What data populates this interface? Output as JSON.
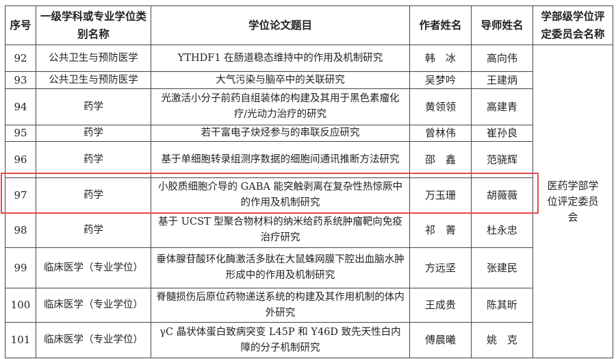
{
  "header": {
    "no": "序号",
    "category": "一级学科或专业学位类别名称",
    "title": "学位论文题目",
    "author": "作者姓名",
    "advisor": "导师姓名",
    "committee": "学部级学位评定委员会名称"
  },
  "committee": "医药学部学位评定委员会",
  "highlight_color": "#e8474c",
  "rows": [
    {
      "no": "92",
      "category": "公共卫生与预防医学",
      "title": "YTHDF1 在肠道稳态维持中的作用及机制研究",
      "author": "韩　冰",
      "advisor": "高向伟"
    },
    {
      "no": "93",
      "category": "公共卫生与预防医学",
      "title": "大气污染与脑卒中的关联研究",
      "author": "吴梦吟",
      "advisor": "王建炳"
    },
    {
      "no": "94",
      "category": "药学",
      "title": "光激活小分子前药自组装体的构建及其用于黑色素瘤化疗/光动力治疗的研究",
      "author": "黄领领",
      "advisor": "高建青"
    },
    {
      "no": "95",
      "category": "药学",
      "title": "若干富电子炔烃参与的串联反应研究",
      "author": "曾林伟",
      "advisor": "崔孙良"
    },
    {
      "no": "96",
      "category": "药学",
      "title": "基于单细胞转录组测序数据的细胞间通讯推断方法研究",
      "author": "邵　鑫",
      "advisor": "范骁辉"
    },
    {
      "no": "97",
      "category": "药学",
      "title": "小胶质细胞介导的 GABA 能突触剥离在复杂性热惊厥中的作用及机制研究",
      "author": "万玉珊",
      "advisor": "胡薇薇",
      "highlighted": true
    },
    {
      "no": "98",
      "category": "药学",
      "title": "基于 UCST 型聚合物材料的纳米给药系统肿瘤靶向免疫治疗研究",
      "author": "祁　菁",
      "advisor": "杜永忠"
    },
    {
      "no": "99",
      "category": "临床医学（专业学位）",
      "title": "垂体腺苷酸环化酶激活多肽在大鼠蛛网膜下腔出血脑水肿形成中的作用及机制研究",
      "author": "方远坚",
      "advisor": "张建民"
    },
    {
      "no": "100",
      "category": "临床医学（专业学位）",
      "title": "脊髓损伤后原位药物递送系统的构建及其作用机制的体内外研究",
      "author": "王成贵",
      "advisor": "陈其昕"
    },
    {
      "no": "101",
      "category": "临床医学（专业学位）",
      "title": "γC 晶状体蛋白致病突变 L45P 和 Y46D 致先天性白内障的分子机制研究",
      "author": "傅晨曦",
      "advisor": "姚　克"
    }
  ]
}
